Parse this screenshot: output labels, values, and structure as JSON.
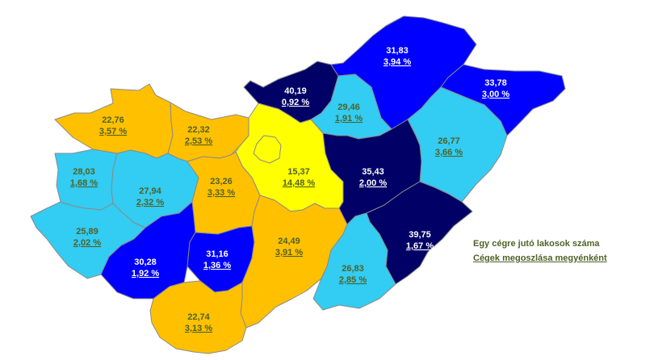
{
  "colors": {
    "yellow": "#ffff00",
    "orange": "#ffc000",
    "light_blue": "#33ccf2",
    "blue": "#0000ff",
    "dark_navy": "#000066",
    "text_green": "#4f6228",
    "border": "#8a8a8a"
  },
  "legend": {
    "line1": "Egy cégre jutó lakosok száma",
    "line2": "Cégek megoszlása megyénként"
  },
  "counties": [
    {
      "key": "gyor",
      "value": "22,76",
      "share": "3,57 %",
      "color": "orange"
    },
    {
      "key": "komarom",
      "value": "22,32",
      "share": "2,53 %",
      "color": "orange"
    },
    {
      "key": "nograd",
      "value": "40,19",
      "share": "0,92 %",
      "color": "dark_navy"
    },
    {
      "key": "borsod",
      "value": "31,83",
      "share": "3,94 %",
      "color": "blue"
    },
    {
      "key": "szabolcs",
      "value": "33,78",
      "share": "3,00 %",
      "color": "blue"
    },
    {
      "key": "heves",
      "value": "29,46",
      "share": "1,91 %",
      "color": "light_blue"
    },
    {
      "key": "hajdu",
      "value": "26,77",
      "share": "3,66 %",
      "color": "light_blue"
    },
    {
      "key": "pest",
      "value": "15,37",
      "share": "14,48 %",
      "color": "yellow"
    },
    {
      "key": "jasz",
      "value": "35,43",
      "share": "2,00 %",
      "color": "dark_navy"
    },
    {
      "key": "vas",
      "value": "28,03",
      "share": "1,68 %",
      "color": "light_blue"
    },
    {
      "key": "veszprem",
      "value": "27,94",
      "share": "2,32 %",
      "color": "light_blue"
    },
    {
      "key": "fejer",
      "value": "23,26",
      "share": "3,33 %",
      "color": "orange"
    },
    {
      "key": "bekes",
      "value": "39,75",
      "share": "1,67 %",
      "color": "dark_navy"
    },
    {
      "key": "zala",
      "value": "25,89",
      "share": "2,02 %",
      "color": "light_blue"
    },
    {
      "key": "somogy",
      "value": "30,28",
      "share": "1,92 %",
      "color": "blue"
    },
    {
      "key": "tolna",
      "value": "31,16",
      "share": "1,36 %",
      "color": "blue"
    },
    {
      "key": "bacs",
      "value": "24,49",
      "share": "3,91 %",
      "color": "orange"
    },
    {
      "key": "csongrad",
      "value": "26,83",
      "share": "2,85 %",
      "color": "light_blue"
    },
    {
      "key": "baranya",
      "value": "22,74",
      "share": "3,13 %",
      "color": "orange"
    }
  ]
}
